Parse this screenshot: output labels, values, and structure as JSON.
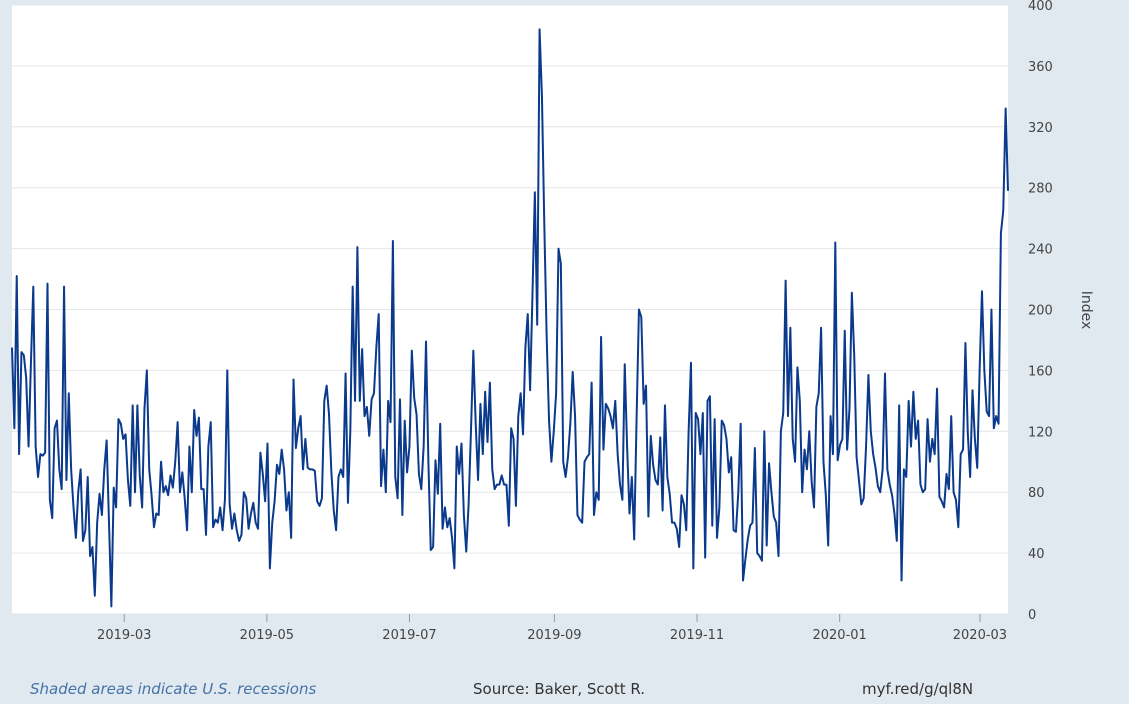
{
  "footer": {
    "recession_note": "Shaded areas indicate U.S. recessions",
    "source": "Source: Baker, Scott R.",
    "short_url": "myf.red/g/ql8N"
  },
  "colors": {
    "page_background": "#e1e9f0",
    "plot_background": "#ffffff",
    "series_line": "#0b3a8c",
    "gridline": "#e6e6e6",
    "recession_note": "#4572a7"
  },
  "chart_data": {
    "type": "line",
    "title": "",
    "xlabel": "",
    "ylabel": "Index",
    "ylim": [
      0,
      400
    ],
    "yticks": [
      0,
      40,
      80,
      120,
      160,
      200,
      240,
      280,
      320,
      360,
      400
    ],
    "xlim": [
      "2019-01-12",
      "2020-03-13"
    ],
    "xticks": [
      "2019-03",
      "2019-05",
      "2019-07",
      "2019-09",
      "2019-11",
      "2020-01",
      "2020-03"
    ],
    "grid": "horizontal",
    "legend": "none",
    "series": [
      {
        "start_date": "2019-01-12",
        "end_date": "2020-03-13",
        "values": [
          175,
          122,
          222,
          105,
          172,
          170,
          155,
          110,
          165,
          215,
          110,
          90,
          105,
          104,
          106,
          217,
          75,
          63,
          122,
          127,
          95,
          82,
          215,
          88,
          145,
          95,
          70,
          50,
          80,
          95,
          48,
          55,
          90,
          38,
          44,
          12,
          60,
          79,
          65,
          95,
          114,
          60,
          5,
          83,
          70,
          128,
          125,
          115,
          118,
          88,
          71,
          137,
          80,
          137,
          91,
          70,
          135,
          160,
          95,
          78,
          57,
          66,
          65,
          100,
          80,
          84,
          78,
          91,
          83,
          100,
          126,
          80,
          93,
          76,
          55,
          110,
          80,
          134,
          117,
          129,
          82,
          82,
          52,
          110,
          126,
          57,
          62,
          60,
          70,
          55,
          75,
          160,
          72,
          56,
          66,
          55,
          48,
          52,
          80,
          76,
          56,
          66,
          73,
          60,
          56,
          106,
          92,
          74,
          112,
          30,
          60,
          74,
          98,
          92,
          108,
          95,
          68,
          80,
          50,
          154,
          109,
          122,
          130,
          95,
          115,
          96,
          95,
          95,
          94,
          74,
          71,
          76,
          140,
          150,
          131,
          93,
          68,
          55,
          90,
          95,
          90,
          158,
          73,
          120,
          215,
          140,
          241,
          140,
          174,
          130,
          136,
          117,
          141,
          145,
          175,
          197,
          84,
          108,
          80,
          140,
          126,
          245,
          90,
          76,
          141,
          65,
          127,
          93,
          110,
          173,
          142,
          131,
          92,
          82,
          110,
          179,
          100,
          42,
          44,
          101,
          79,
          125,
          56,
          70,
          57,
          63,
          50,
          30,
          110,
          92,
          112,
          65,
          41,
          72,
          120,
          173,
          125,
          88,
          138,
          105,
          146,
          113,
          152,
          95,
          82,
          85,
          85,
          91,
          85,
          85,
          58,
          122,
          115,
          71,
          130,
          145,
          118,
          175,
          197,
          147,
          210,
          277,
          190,
          384,
          340,
          256,
          182,
          127,
          100,
          120,
          145,
          240,
          230,
          100,
          90,
          103,
          125,
          159,
          130,
          65,
          62,
          60,
          100,
          103,
          105,
          152,
          65,
          80,
          75,
          182,
          108,
          138,
          135,
          130,
          122,
          140,
          105,
          85,
          75,
          164,
          110,
          66,
          90,
          49,
          128,
          200,
          195,
          138,
          150,
          64,
          117,
          98,
          88,
          85,
          116,
          68,
          137,
          90,
          79,
          60,
          60,
          56,
          44,
          78,
          72,
          55,
          120,
          165,
          30,
          132,
          128,
          105,
          132,
          37,
          140,
          143,
          58,
          128,
          50,
          70,
          127,
          124,
          115,
          93,
          103,
          55,
          54,
          80,
          125,
          22,
          36,
          49,
          58,
          60,
          109,
          40,
          38,
          35,
          120,
          45,
          99,
          80,
          64,
          60,
          38,
          120,
          132,
          219,
          130,
          188,
          115,
          100,
          162,
          140,
          80,
          108,
          95,
          120,
          87,
          70,
          136,
          145,
          188,
          100,
          78,
          45,
          130,
          105,
          244,
          101,
          111,
          115,
          186,
          108,
          135,
          211,
          170,
          103,
          88,
          72,
          76,
          110,
          157,
          120,
          105,
          96,
          84,
          80,
          95,
          158,
          95,
          85,
          78,
          66,
          48,
          137,
          22,
          95,
          90,
          140,
          110,
          146,
          115,
          127,
          85,
          80,
          82,
          128,
          100,
          115,
          105,
          148,
          77,
          74,
          70,
          92,
          82,
          130,
          80,
          75,
          57,
          105,
          108,
          178,
          119,
          90,
          147,
          115,
          96,
          160,
          212,
          160,
          133,
          130,
          200,
          122,
          130,
          125,
          250,
          265,
          332,
          278
        ]
      }
    ]
  }
}
